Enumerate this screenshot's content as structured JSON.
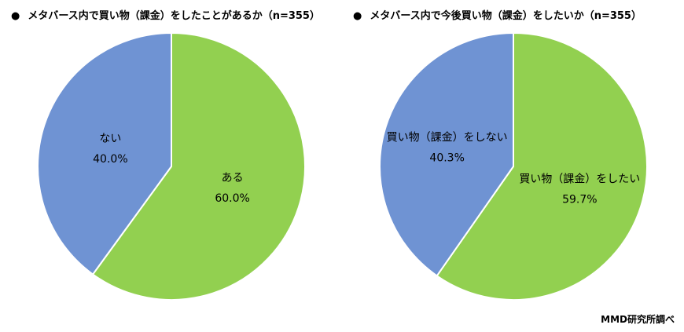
{
  "chart_data": [
    {
      "type": "pie",
      "title": "メタバース内で買い物（課金）をしたことがあるか（n=355）",
      "slices": [
        {
          "label": "ある",
          "value": 60.0,
          "display": "60.0%",
          "color": "#92d050"
        },
        {
          "label": "ない",
          "value": 40.0,
          "display": "40.0%",
          "color": "#6f93d3"
        }
      ],
      "start": "12 o'clock",
      "direction": "clockwise"
    },
    {
      "type": "pie",
      "title": "メタバース内で今後買い物（課金）をしたいか（n=355）",
      "slices": [
        {
          "label": "買い物（課金）をしたい",
          "value": 59.7,
          "display": "59.7%",
          "color": "#92d050"
        },
        {
          "label": "買い物（課金）をしない",
          "value": 40.3,
          "display": "40.3%",
          "color": "#6f93d3"
        }
      ],
      "start": "12 o'clock",
      "direction": "clockwise"
    }
  ],
  "bullet": "●",
  "source": "MMD研究所調べ",
  "slice_border_color": "#ffffff"
}
